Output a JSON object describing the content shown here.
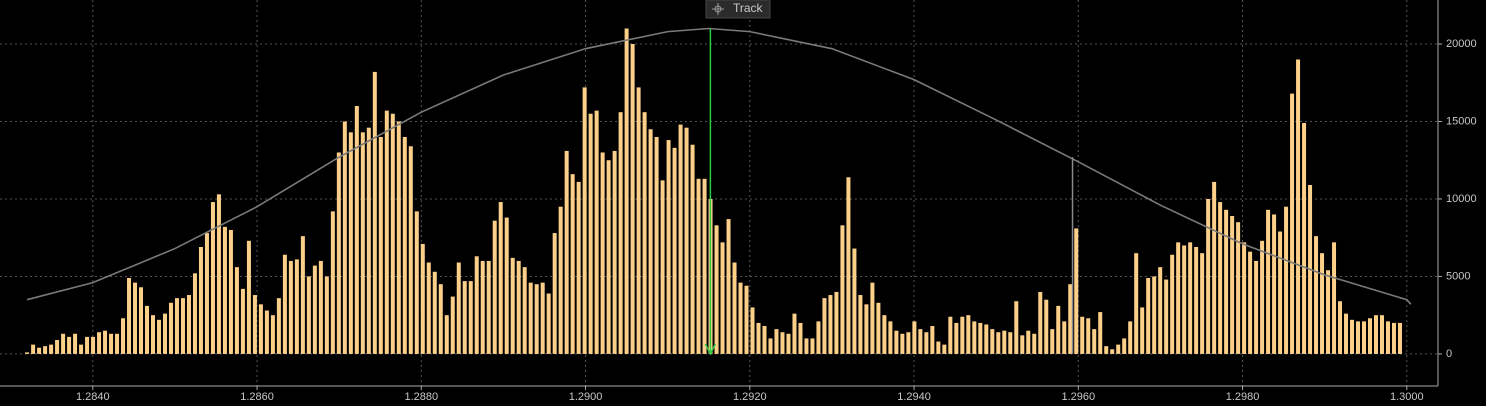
{
  "chart_data": {
    "type": "bar",
    "track_label": "Track",
    "color": "#fdd08a",
    "x": [
      1.2832,
      1.283273,
      1.283346,
      1.283419,
      1.283492,
      1.283565,
      1.283638,
      1.283711,
      1.283784,
      1.283857,
      1.28393,
      1.284003,
      1.284076,
      1.284149,
      1.284222,
      1.284295,
      1.284368,
      1.284441,
      1.284514,
      1.284587,
      1.28466,
      1.284733,
      1.284806,
      1.284879,
      1.284952,
      1.285025,
      1.285098,
      1.285171,
      1.285244,
      1.285317,
      1.28539,
      1.285463,
      1.285536,
      1.285609,
      1.285682,
      1.285755,
      1.285828,
      1.285901,
      1.285974,
      1.286047,
      1.28612,
      1.286193,
      1.286266,
      1.286339,
      1.286412,
      1.286485,
      1.286558,
      1.286631,
      1.286704,
      1.286777,
      1.28685,
      1.286923,
      1.286996,
      1.287069,
      1.287142,
      1.287215,
      1.287288,
      1.287361,
      1.287434,
      1.287507,
      1.28758,
      1.287653,
      1.287726,
      1.287799,
      1.287872,
      1.287945,
      1.288018,
      1.288091,
      1.288164,
      1.288237,
      1.28831,
      1.288383,
      1.288456,
      1.288529,
      1.288602,
      1.288675,
      1.288748,
      1.288821,
      1.288894,
      1.288967,
      1.28904,
      1.289113,
      1.289186,
      1.289259,
      1.289332,
      1.289405,
      1.289478,
      1.289551,
      1.289624,
      1.289697,
      1.28977,
      1.289843,
      1.289916,
      1.289989,
      1.290062,
      1.290135,
      1.290208,
      1.290281,
      1.290354,
      1.290427,
      1.2905,
      1.290573,
      1.290646,
      1.290719,
      1.290792,
      1.290865,
      1.290938,
      1.291011,
      1.291084,
      1.291157,
      1.29123,
      1.291303,
      1.291376,
      1.291449,
      1.291522,
      1.291595,
      1.291668,
      1.291741,
      1.291814,
      1.291887,
      1.29196,
      1.292033,
      1.292106,
      1.292179,
      1.292252,
      1.292325,
      1.292398,
      1.292471,
      1.292544,
      1.292617,
      1.29269,
      1.292763,
      1.292836,
      1.292909,
      1.292982,
      1.293055,
      1.293128,
      1.293201,
      1.293274,
      1.293347,
      1.29342,
      1.293493,
      1.293566,
      1.293639,
      1.293712,
      1.293785,
      1.293858,
      1.293931,
      1.294004,
      1.294077,
      1.29415,
      1.294223,
      1.294296,
      1.294369,
      1.294442,
      1.294515,
      1.294588,
      1.294661,
      1.294734,
      1.294807,
      1.29488,
      1.294953,
      1.295026,
      1.295099,
      1.295172,
      1.295245,
      1.295318,
      1.295391,
      1.295464,
      1.295537,
      1.29561,
      1.295683,
      1.295756,
      1.295829,
      1.295902,
      1.295975,
      1.296048,
      1.296121,
      1.296194,
      1.296267,
      1.29634,
      1.296413,
      1.296486,
      1.296559,
      1.296632,
      1.296705,
      1.296778,
      1.296851,
      1.296924,
      1.296997,
      1.29707,
      1.297143,
      1.297216,
      1.297289,
      1.297362,
      1.297435,
      1.297508,
      1.297581,
      1.297654,
      1.297727,
      1.2978,
      1.297873,
      1.297946,
      1.298019,
      1.298092,
      1.298165,
      1.298238,
      1.298311,
      1.298384,
      1.298457,
      1.29853,
      1.298603,
      1.298676,
      1.298749,
      1.298822,
      1.298895,
      1.298968,
      1.299041,
      1.299114,
      1.299187,
      1.29926,
      1.299333,
      1.299406,
      1.299479,
      1.299552,
      1.299625,
      1.299698,
      1.299771,
      1.299844,
      1.299917
    ],
    "values": [
      100,
      600,
      400,
      500,
      600,
      900,
      1300,
      1100,
      1300,
      600,
      1100,
      1100,
      1400,
      1500,
      1300,
      1300,
      2300,
      4900,
      4600,
      4300,
      3100,
      2500,
      2200,
      2600,
      3300,
      3600,
      3600,
      3800,
      5200,
      6900,
      7800,
      9800,
      10300,
      8200,
      8000,
      5600,
      4200,
      7300,
      3800,
      3200,
      2800,
      2500,
      3600,
      6400,
      6000,
      6100,
      7600,
      5000,
      5700,
      6000,
      5000,
      9200,
      13000,
      15000,
      14300,
      16000,
      14300,
      14600,
      18200,
      14000,
      15700,
      15500,
      15000,
      14000,
      13400,
      9200,
      7100,
      5900,
      5300,
      4500,
      2500,
      3700,
      5900,
      4700,
      4700,
      6300,
      6000,
      6000,
      8600,
      9800,
      8800,
      6200,
      6000,
      5600,
      4600,
      4500,
      4600,
      3900,
      7800,
      9500,
      13100,
      11600,
      11100,
      17200,
      15500,
      15700,
      13000,
      12500,
      13100,
      15600,
      21000,
      20000,
      17200,
      15600,
      14500,
      14000,
      11200,
      13800,
      13300,
      14800,
      14600,
      13500,
      11300,
      11300,
      10000,
      8300,
      7200,
      8700,
      5900,
      4600,
      4400,
      3000,
      2000,
      1800,
      1000,
      1600,
      1400,
      1300,
      2600,
      2000,
      1000,
      1000,
      2100,
      3600,
      3800,
      4000,
      8300,
      11400,
      6800,
      3800,
      3200,
      4600,
      3300,
      2500,
      2100,
      1500,
      1300,
      1400,
      2100,
      1600,
      1400,
      1800,
      800,
      600,
      2400,
      2000,
      2400,
      2500,
      2100,
      2000,
      1900,
      1600,
      1400,
      1500,
      1400,
      3400,
      1200,
      1500,
      1300,
      4000,
      3500,
      1600,
      3100,
      2100,
      4500,
      8100,
      2400,
      2300,
      1600,
      2700,
      500,
      300,
      600,
      1000,
      2100,
      6500,
      3000,
      4900,
      5000,
      5600,
      4800,
      6400,
      7200,
      7000,
      7200,
      6900,
      6500,
      10000,
      11100,
      9800,
      9300,
      8900,
      8500,
      7200,
      6600,
      6000,
      7300,
      9300,
      9000,
      7900,
      9500,
      16800,
      19000,
      14900,
      10900,
      7600,
      6500,
      5400,
      7200,
      3400,
      2600,
      2200,
      2100,
      2100,
      2300,
      2500,
      2500,
      2100,
      2000,
      2000
    ],
    "curve": {
      "color": "#7a7a7a",
      "x": [
        1.2832,
        1.284,
        1.285,
        1.286,
        1.287,
        1.288,
        1.289,
        1.29,
        1.291,
        1.2915,
        1.292,
        1.293,
        1.294,
        1.295,
        1.296,
        1.297,
        1.298,
        1.299,
        1.3,
        1.30005
      ],
      "values": [
        3500,
        4600,
        6800,
        9500,
        12700,
        15600,
        18000,
        19700,
        20800,
        21000,
        20800,
        19700,
        17700,
        15100,
        12400,
        9600,
        7100,
        5100,
        3500,
        3200
      ]
    },
    "cursor": {
      "x": 1.29152,
      "value": 21000,
      "color": "#2ecc40"
    },
    "marker": {
      "x": 1.29593,
      "value": 12700,
      "color": "#8a8a8a"
    },
    "xlim": [
      1.28287,
      1.30038
    ],
    "ylim": [
      -2070,
      22840
    ],
    "xticks": [
      {
        "value": 1.284,
        "label": "1.2840"
      },
      {
        "value": 1.286,
        "label": "1.2860"
      },
      {
        "value": 1.288,
        "label": "1.2880"
      },
      {
        "value": 1.29,
        "label": "1.2900"
      },
      {
        "value": 1.292,
        "label": "1.2920"
      },
      {
        "value": 1.294,
        "label": "1.2940"
      },
      {
        "value": 1.296,
        "label": "1.2960"
      },
      {
        "value": 1.298,
        "label": "1.2980"
      },
      {
        "value": 1.3,
        "label": "1.3000"
      }
    ],
    "yticks": [
      0,
      5000,
      10000,
      15000,
      20000
    ],
    "grid": true
  }
}
